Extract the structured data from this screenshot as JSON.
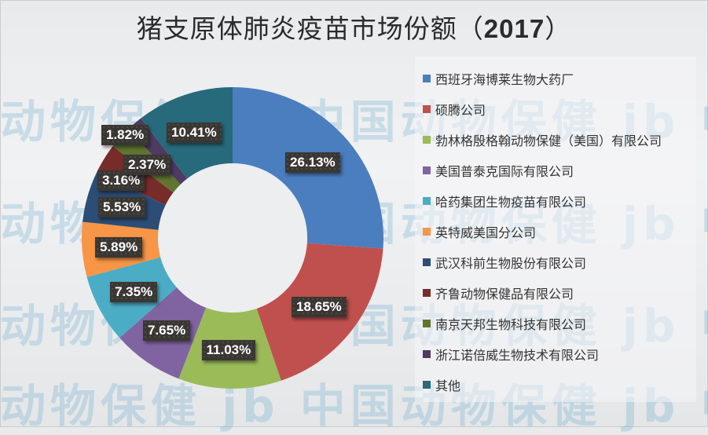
{
  "title": {
    "text": "猪支原体肺炎疫苗市场份额（",
    "year": "2017",
    "close": "）"
  },
  "watermark": {
    "text": "动物保健 jb 中国动物保健 jb 中国动"
  },
  "chart_data": {
    "type": "pie",
    "variant": "donut",
    "title": "猪支原体肺炎疫苗市场份额（2017）",
    "legend_position": "right",
    "categories": [
      "西班牙海博莱生物大药厂",
      "硕腾公司",
      "勃林格殷格翰动物保健（美国）有限公司",
      "美国普泰克国际有限公司",
      "哈药集团生物疫苗有限公司",
      "英特威美国分公司",
      "武汉科前生物股份有限公司",
      "齐鲁动物保健品有限公司",
      "南京天邦生物科技有限公司",
      "浙江诺倍威生物技术有限公司",
      "其他"
    ],
    "values": [
      26.13,
      18.65,
      11.03,
      7.65,
      7.35,
      5.89,
      5.53,
      3.16,
      2.37,
      1.82,
      10.41
    ],
    "labels": [
      "26.13%",
      "18.65%",
      "11.03%",
      "7.65%",
      "7.35%",
      "5.89%",
      "5.53%",
      "3.16%",
      "2.37%",
      "1.82%",
      "10.41%"
    ],
    "colors": [
      "#4a7ebf",
      "#c0504d",
      "#9bbb59",
      "#8064a2",
      "#4bacc6",
      "#f79646",
      "#2c4d75",
      "#772c2a",
      "#5f7530",
      "#4d3b62",
      "#276a7c"
    ]
  },
  "legend": {
    "items": [
      {
        "label": "西班牙海博莱生物大药厂",
        "color": "#4a7ebf"
      },
      {
        "label": "硕腾公司",
        "color": "#c0504d"
      },
      {
        "label": "勃林格殷格翰动物保健（美国）有限公司",
        "color": "#9bbb59"
      },
      {
        "label": "美国普泰克国际有限公司",
        "color": "#8064a2"
      },
      {
        "label": "哈药集团生物疫苗有限公司",
        "color": "#4bacc6"
      },
      {
        "label": "英特威美国分公司",
        "color": "#f79646"
      },
      {
        "label": "武汉科前生物股份有限公司",
        "color": "#2c4d75"
      },
      {
        "label": "齐鲁动物保健品有限公司",
        "color": "#772c2a"
      },
      {
        "label": "南京天邦生物科技有限公司",
        "color": "#5f7530"
      },
      {
        "label": "浙江诺倍威生物技术有限公司",
        "color": "#4d3b62"
      },
      {
        "label": "其他",
        "color": "#276a7c"
      }
    ]
  }
}
